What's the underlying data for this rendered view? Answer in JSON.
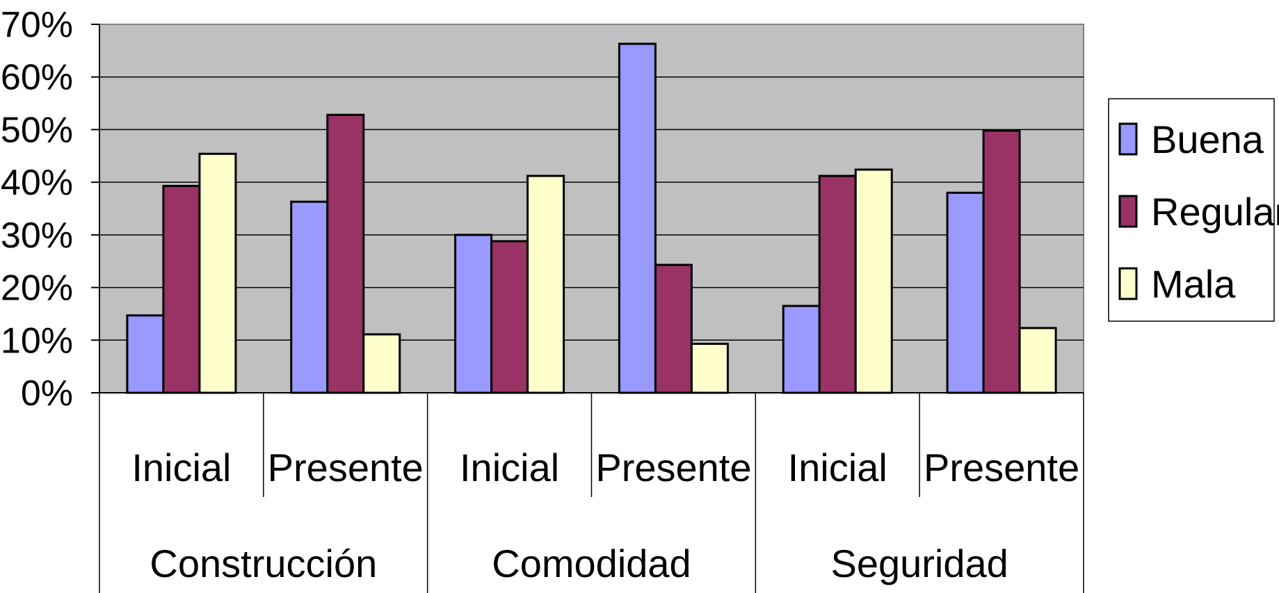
{
  "chart_data": {
    "type": "bar",
    "title": "",
    "xlabel": "",
    "ylabel": "",
    "ylim": [
      0,
      70
    ],
    "y_ticks": [
      "0%",
      "10%",
      "20%",
      "30%",
      "40%",
      "50%",
      "60%",
      "70%"
    ],
    "y_tick_values": [
      0,
      10,
      20,
      30,
      40,
      50,
      60,
      70
    ],
    "grid": true,
    "legend_position": "right",
    "groups": [
      {
        "label": "Construcción",
        "categories": [
          "Inicial",
          "Presente"
        ]
      },
      {
        "label": "Comodidad",
        "categories": [
          "Inicial",
          "Presente"
        ]
      },
      {
        "label": "Seguridad",
        "categories": [
          "Inicial",
          "Presente"
        ]
      }
    ],
    "series": [
      {
        "name": "Buena",
        "color": "#9999ff",
        "values": [
          14.7,
          36.3,
          30.0,
          66.3,
          16.5,
          38.0
        ]
      },
      {
        "name": "Regular",
        "color": "#993366",
        "values": [
          39.3,
          52.8,
          28.8,
          24.3,
          41.2,
          49.8
        ]
      },
      {
        "name": "Mala",
        "color": "#ffffcc",
        "values": [
          45.4,
          11.1,
          41.2,
          9.3,
          42.4,
          12.3
        ]
      }
    ],
    "plot_background": "#c0c0c0"
  }
}
